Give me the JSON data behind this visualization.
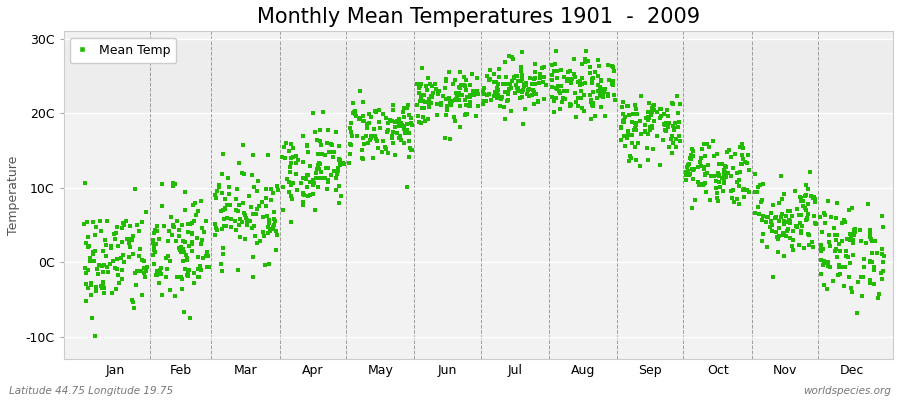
{
  "title": "Monthly Mean Temperatures 1901  -  2009",
  "ylabel": "Temperature",
  "xlabel_labels": [
    "Jan",
    "Feb",
    "Mar",
    "Apr",
    "May",
    "Jun",
    "Jul",
    "Aug",
    "Sep",
    "Oct",
    "Nov",
    "Dec"
  ],
  "bottom_left_text": "Latitude 44.75 Longitude 19.75",
  "bottom_right_text": "worldspecies.org",
  "legend_label": "Mean Temp",
  "dot_color": "#22bb00",
  "figure_bg_color": "#ffffff",
  "plot_bg_color": "#f2f2f2",
  "stripe_color": "#e8e8e8",
  "yticks": [
    -10,
    0,
    10,
    20,
    30
  ],
  "ytick_labels": [
    "-10C",
    "0C",
    "10C",
    "20C",
    "30C"
  ],
  "ylim": [
    -13,
    31
  ],
  "title_fontsize": 15,
  "axis_fontsize": 9,
  "monthly_means": [
    0.2,
    1.5,
    6.8,
    12.8,
    17.8,
    21.8,
    23.8,
    23.2,
    18.2,
    12.2,
    6.0,
    1.5
  ],
  "monthly_stds": [
    3.8,
    4.2,
    3.2,
    2.8,
    2.2,
    1.8,
    1.8,
    2.0,
    2.3,
    2.3,
    2.8,
    3.2
  ],
  "n_years": 109,
  "seed": 42,
  "month_starts": [
    0,
    31,
    59,
    90,
    120,
    151,
    181,
    212,
    243,
    273,
    304,
    334
  ],
  "month_lengths": [
    31,
    28,
    31,
    30,
    31,
    30,
    31,
    31,
    30,
    31,
    30,
    31
  ],
  "total_days": 365
}
